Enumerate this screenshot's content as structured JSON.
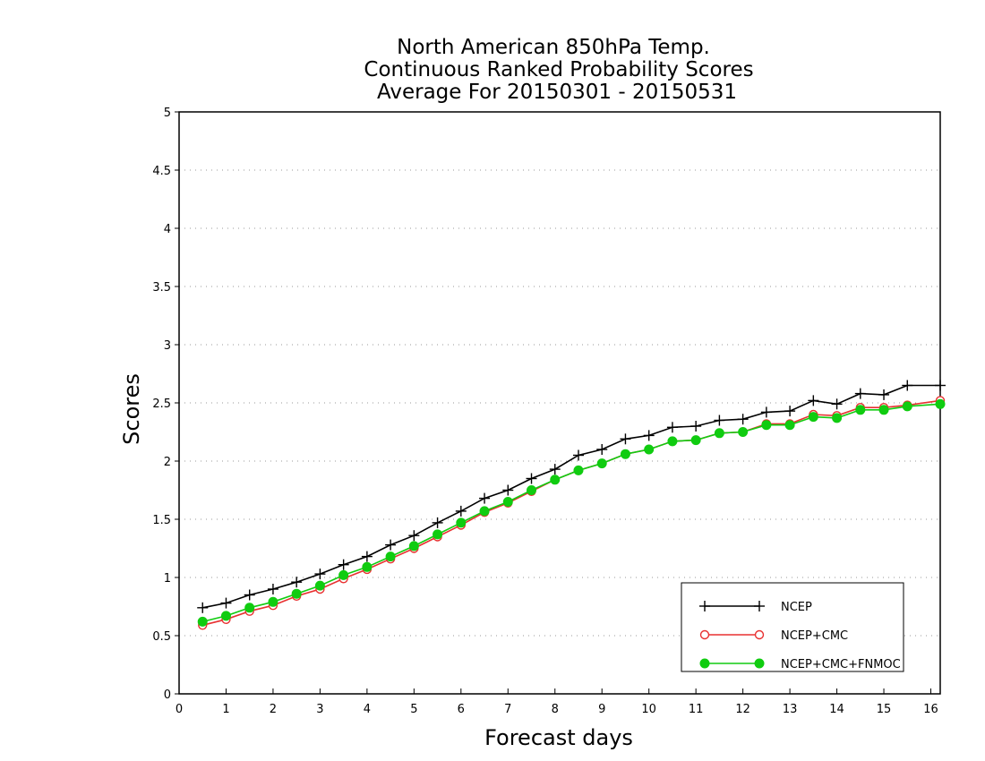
{
  "chart_data": {
    "type": "line",
    "title_lines": [
      "North American 850hPa Temp.",
      "Continuous Ranked Probability Scores",
      "Average For 20150301 - 20150531"
    ],
    "xlabel": "Forecast days",
    "ylabel": "Scores",
    "xlim": [
      0,
      16.2
    ],
    "ylim": [
      0,
      5
    ],
    "x_ticks": [
      "0",
      "1",
      "2",
      "3",
      "4",
      "5",
      "6",
      "7",
      "8",
      "9",
      "10",
      "11",
      "12",
      "13",
      "14",
      "15",
      "16"
    ],
    "y_ticks": [
      "0",
      "0.5",
      "1",
      "1.5",
      "2",
      "2.5",
      "3",
      "3.5",
      "4",
      "4.5",
      "5"
    ],
    "grid": "horizontal-dotted",
    "legend_position": "bottom-right",
    "x": [
      0.5,
      1,
      1.5,
      2,
      2.5,
      3,
      3.5,
      4,
      4.5,
      5,
      5.5,
      6,
      6.5,
      7,
      7.5,
      8,
      8.5,
      9,
      9.5,
      10,
      10.5,
      11,
      11.5,
      12,
      12.5,
      13,
      13.5,
      14,
      14.5,
      15,
      15.5,
      16.2
    ],
    "series": [
      {
        "name": "NCEP",
        "color": "#000000",
        "marker": "plus",
        "values": [
          0.74,
          0.78,
          0.85,
          0.9,
          0.96,
          1.03,
          1.11,
          1.18,
          1.28,
          1.36,
          1.47,
          1.57,
          1.68,
          1.75,
          1.85,
          1.93,
          2.05,
          2.1,
          2.19,
          2.22,
          2.29,
          2.3,
          2.35,
          2.36,
          2.42,
          2.43,
          2.52,
          2.49,
          2.58,
          2.57,
          2.65,
          2.65
        ]
      },
      {
        "name": "NCEP+CMC",
        "color": "#e83030",
        "marker": "open-circle",
        "values": [
          0.59,
          0.64,
          0.71,
          0.76,
          0.84,
          0.9,
          0.99,
          1.07,
          1.16,
          1.25,
          1.35,
          1.45,
          1.56,
          1.64,
          1.74,
          1.84,
          1.92,
          1.98,
          2.06,
          2.1,
          2.17,
          2.18,
          2.24,
          2.25,
          2.32,
          2.32,
          2.4,
          2.39,
          2.46,
          2.46,
          2.48,
          2.52
        ]
      },
      {
        "name": "NCEP+CMC+FNMOC",
        "color": "#10cc10",
        "marker": "filled-circle",
        "values": [
          0.62,
          0.67,
          0.74,
          0.79,
          0.86,
          0.93,
          1.02,
          1.09,
          1.18,
          1.27,
          1.37,
          1.47,
          1.57,
          1.65,
          1.75,
          1.84,
          1.92,
          1.98,
          2.06,
          2.1,
          2.17,
          2.18,
          2.24,
          2.25,
          2.31,
          2.31,
          2.38,
          2.37,
          2.44,
          2.44,
          2.47,
          2.49
        ]
      }
    ]
  }
}
